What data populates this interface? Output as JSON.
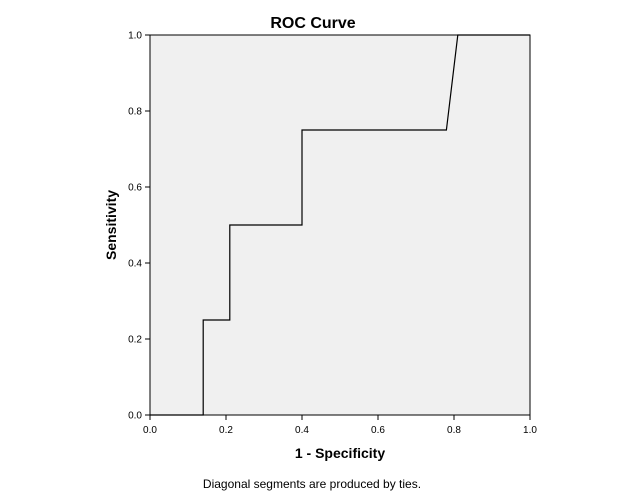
{
  "chart_data": {
    "type": "line",
    "title": "ROC Curve",
    "xlabel": "1 - Specificity",
    "ylabel": "Sensitivity",
    "xlim": [
      0.0,
      1.0
    ],
    "ylim": [
      0.0,
      1.0
    ],
    "xticks": [
      "0.0",
      "0.2",
      "0.4",
      "0.6",
      "0.8",
      "1.0"
    ],
    "yticks": [
      "0.0",
      "0.2",
      "0.4",
      "0.6",
      "0.8",
      "1.0"
    ],
    "grid": false,
    "plot_background": "#f0f0f0",
    "line_color": "#000000",
    "series": [
      {
        "x": [
          0.0,
          0.14,
          0.14,
          0.21,
          0.21,
          0.4,
          0.4,
          0.78,
          0.81,
          1.0
        ],
        "y": [
          0.0,
          0.0,
          0.25,
          0.25,
          0.5,
          0.5,
          0.75,
          0.75,
          1.0,
          1.0
        ]
      }
    ],
    "footnote": "Diagonal segments are produced by ties."
  }
}
